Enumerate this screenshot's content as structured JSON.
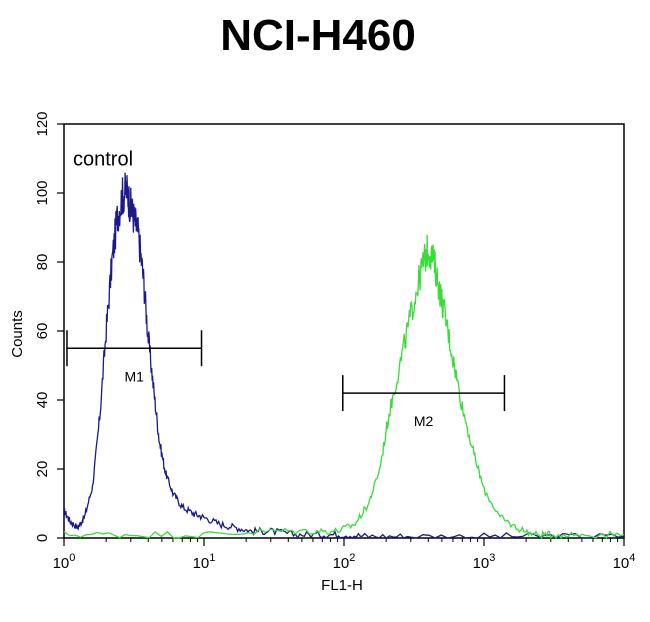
{
  "chart_data": {
    "type": "line",
    "title": "NCI-H460",
    "xlabel": "FL1-H",
    "ylabel": "Counts",
    "xscale": "log",
    "xlim": [
      1,
      10000
    ],
    "ylim": [
      0,
      120
    ],
    "x_ticks": [
      {
        "base": "10",
        "exp": "0",
        "value": 1
      },
      {
        "base": "10",
        "exp": "1",
        "value": 10
      },
      {
        "base": "10",
        "exp": "2",
        "value": 100
      },
      {
        "base": "10",
        "exp": "3",
        "value": 1000
      },
      {
        "base": "10",
        "exp": "4",
        "value": 10000
      }
    ],
    "y_ticks": [
      0,
      20,
      40,
      60,
      80,
      100,
      120
    ],
    "grid": false,
    "annotations": [
      {
        "text": "control",
        "x": 1.9,
        "y": 108
      }
    ],
    "gates": [
      {
        "label": "M1",
        "x_start": 1.05,
        "x_end": 9.6,
        "y": 55
      },
      {
        "label": "M2",
        "x_start": 98,
        "x_end": 1400,
        "y": 42
      }
    ],
    "series": [
      {
        "color": "#1a1a8c",
        "x": [
          1.0,
          1.1,
          1.25,
          1.4,
          1.6,
          1.8,
          2.0,
          2.2,
          2.4,
          2.6,
          2.8,
          3.0,
          3.2,
          3.4,
          3.7,
          4.0,
          4.4,
          4.8,
          5.3,
          6.0,
          7.0,
          8.5,
          10,
          13,
          17,
          22,
          30,
          45,
          70,
          100,
          150,
          300,
          1000,
          3000,
          10000
        ],
        "y": [
          8,
          5,
          3,
          6,
          15,
          35,
          60,
          80,
          93,
          99,
          101,
          96,
          92,
          88,
          75,
          58,
          42,
          28,
          19,
          13,
          9,
          7,
          6,
          4,
          3,
          2,
          2,
          1,
          1,
          1,
          0.5,
          0.5,
          0.5,
          0.5,
          0.5
        ]
      },
      {
        "color": "#3adc3a",
        "x": [
          1.0,
          3,
          10,
          30,
          60,
          90,
          120,
          150,
          180,
          210,
          250,
          290,
          330,
          370,
          400,
          440,
          480,
          530,
          600,
          700,
          850,
          1000,
          1300,
          1700,
          2300,
          3000,
          5000,
          10000
        ],
        "y": [
          1,
          1,
          1,
          2,
          2,
          2,
          4,
          10,
          20,
          36,
          50,
          62,
          72,
          80,
          84,
          80,
          72,
          64,
          52,
          38,
          24,
          14,
          6,
          3,
          1,
          1,
          1,
          1
        ]
      }
    ]
  }
}
